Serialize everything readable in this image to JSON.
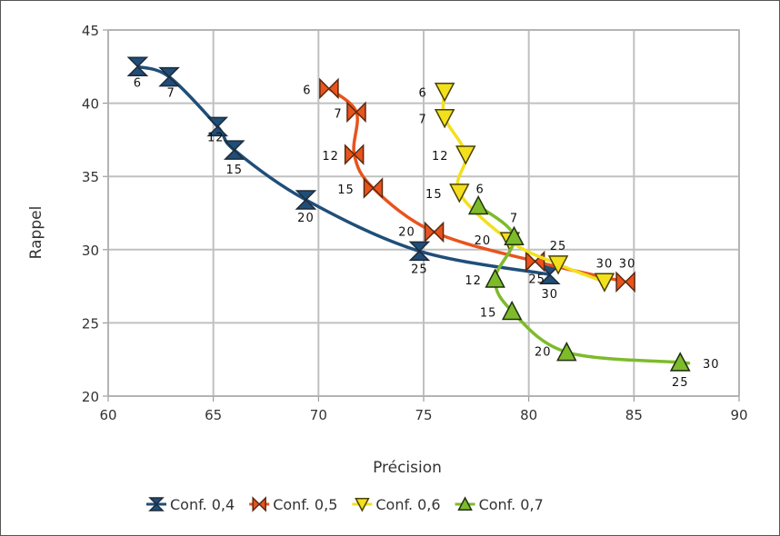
{
  "chart_data": {
    "type": "line",
    "xlabel": "Précision",
    "ylabel": "Rappel",
    "xlim": [
      60,
      90
    ],
    "ylim": [
      20,
      45
    ],
    "xticks": [
      "60",
      "65",
      "70",
      "75",
      "80",
      "85",
      "90"
    ],
    "yticks": [
      "20",
      "25",
      "30",
      "35",
      "40",
      "45"
    ],
    "grid": true,
    "legend_position": "bottom",
    "series": [
      {
        "name": "Conf. 0,4",
        "color": "#1f4e79",
        "marker": "hourglass",
        "points": [
          {
            "x": 61.4,
            "y": 42.5,
            "label": "6"
          },
          {
            "x": 62.9,
            "y": 41.8,
            "label": "7"
          },
          {
            "x": 65.2,
            "y": 38.4,
            "label": "12"
          },
          {
            "x": 66.0,
            "y": 36.8,
            "label": "15"
          },
          {
            "x": 69.4,
            "y": 33.4,
            "label": "20"
          },
          {
            "x": 74.8,
            "y": 29.9,
            "label": "25"
          },
          {
            "x": 81.0,
            "y": 28.3,
            "label": "30"
          }
        ]
      },
      {
        "name": "Conf. 0,5",
        "color": "#e8531e",
        "marker": "bowtie",
        "points": [
          {
            "x": 70.5,
            "y": 41.0,
            "label": "6"
          },
          {
            "x": 71.8,
            "y": 39.4,
            "label": "7"
          },
          {
            "x": 71.7,
            "y": 36.5,
            "label": "12"
          },
          {
            "x": 72.6,
            "y": 34.2,
            "label": "15"
          },
          {
            "x": 75.5,
            "y": 31.2,
            "label": "20"
          },
          {
            "x": 80.3,
            "y": 29.2,
            "label": "25"
          },
          {
            "x": 84.6,
            "y": 27.8,
            "label": "30"
          }
        ]
      },
      {
        "name": "Conf. 0,6",
        "color": "#f2e01e",
        "marker": "triangle-down",
        "points": [
          {
            "x": 76.0,
            "y": 40.8,
            "label": "6"
          },
          {
            "x": 76.0,
            "y": 39.0,
            "label": "7"
          },
          {
            "x": 77.0,
            "y": 36.5,
            "label": "12"
          },
          {
            "x": 76.7,
            "y": 33.9,
            "label": "15"
          },
          {
            "x": 79.1,
            "y": 30.6,
            "label": "20"
          },
          {
            "x": 81.4,
            "y": 29.0,
            "label": "25"
          },
          {
            "x": 83.6,
            "y": 27.8,
            "label": "30"
          }
        ]
      },
      {
        "name": "Conf. 0,7",
        "color": "#7dbb2b",
        "marker": "triangle-up",
        "points": [
          {
            "x": 77.6,
            "y": 33.0,
            "label": "6"
          },
          {
            "x": 79.3,
            "y": 30.9,
            "label": "7"
          },
          {
            "x": 78.4,
            "y": 28.0,
            "label": "12"
          },
          {
            "x": 79.2,
            "y": 25.8,
            "label": "15"
          },
          {
            "x": 81.8,
            "y": 23.0,
            "label": "20"
          },
          {
            "x": 87.2,
            "y": 22.3,
            "label": "25"
          },
          {
            "x": 87.2,
            "y": 22.3,
            "label": "30"
          }
        ]
      }
    ]
  }
}
